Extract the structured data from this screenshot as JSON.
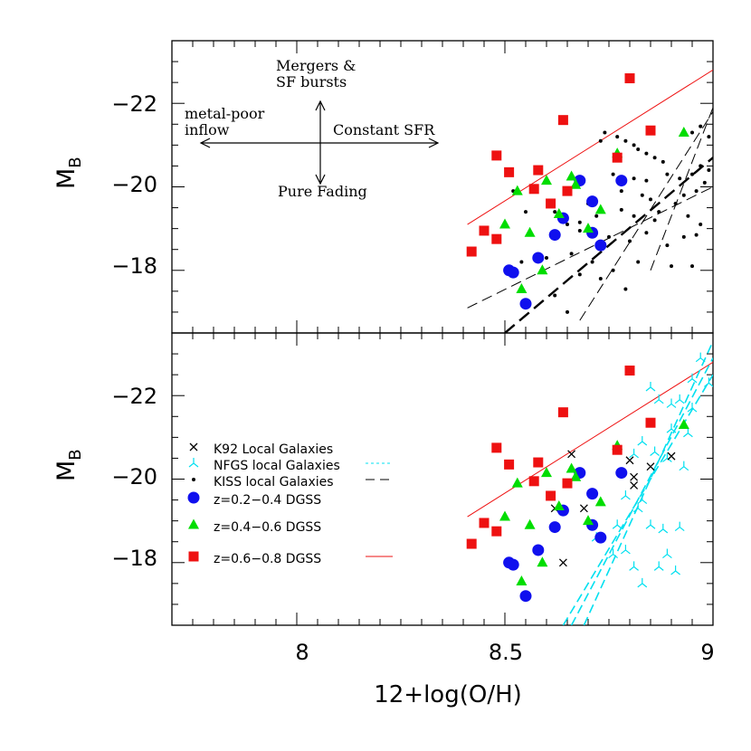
{
  "chart_data": {
    "type": "scatter",
    "xlabel": "12+log(O/H)",
    "ylabel": "M",
    "ylabel_sub": "B",
    "xlim": [
      7.7,
      9.0
    ],
    "ylim": [
      -16.5,
      -23.5
    ],
    "x_ticks": [
      {
        "value": 8.0,
        "label": "8"
      },
      {
        "value": 8.5,
        "label": "8.5"
      },
      {
        "value": 9.0,
        "label": "9"
      }
    ],
    "y_ticks": [
      {
        "value": -18,
        "label": "−18"
      },
      {
        "value": -20,
        "label": "−20"
      },
      {
        "value": -22,
        "label": "−22"
      }
    ],
    "colors": {
      "blue": "#1010ee",
      "green": "#00dd00",
      "red": "#ee1111",
      "cyan": "#00e0f0",
      "black": "#000000"
    },
    "top_panel": {
      "annotations": {
        "mergers": [
          "Mergers &",
          "SF bursts"
        ],
        "metal_poor": [
          "metal-poor",
          "inflow"
        ],
        "constant_sfr": "Constant SFR",
        "pure_fading": "Pure Fading"
      },
      "arrow_center": {
        "x": 7.74,
        "y": -21.0
      },
      "kiss_points": [
        [
          8.73,
          -21.1
        ],
        [
          8.74,
          -21.3
        ],
        [
          8.77,
          -21.2
        ],
        [
          8.79,
          -21.1
        ],
        [
          8.81,
          -21.0
        ],
        [
          8.82,
          -20.9
        ],
        [
          8.84,
          -20.8
        ],
        [
          8.86,
          -20.7
        ],
        [
          8.88,
          -20.6
        ],
        [
          8.76,
          -20.3
        ],
        [
          8.81,
          -20.2
        ],
        [
          8.89,
          -20.3
        ],
        [
          8.92,
          -20.2
        ],
        [
          8.95,
          -20.3
        ],
        [
          8.97,
          -20.5
        ],
        [
          8.99,
          -20.4
        ],
        [
          8.78,
          -19.9
        ],
        [
          8.83,
          -19.8
        ],
        [
          8.85,
          -19.7
        ],
        [
          8.93,
          -19.8
        ],
        [
          8.96,
          -19.9
        ],
        [
          8.98,
          -20.1
        ],
        [
          8.95,
          -21.3
        ],
        [
          8.97,
          -21.45
        ],
        [
          8.99,
          -21.2
        ],
        [
          8.7,
          -19.6
        ],
        [
          8.72,
          -19.3
        ],
        [
          8.78,
          -19.45
        ],
        [
          8.81,
          -19.3
        ],
        [
          8.87,
          -19.4
        ],
        [
          8.91,
          -19.6
        ],
        [
          8.94,
          -19.3
        ],
        [
          8.97,
          -19.1
        ],
        [
          8.62,
          -19.4
        ],
        [
          8.65,
          -19.1
        ],
        [
          8.68,
          -18.95
        ],
        [
          8.75,
          -18.8
        ],
        [
          8.8,
          -18.7
        ],
        [
          8.84,
          -18.9
        ],
        [
          8.89,
          -18.6
        ],
        [
          8.93,
          -18.8
        ],
        [
          8.96,
          -18.85
        ],
        [
          8.6,
          -18.3
        ],
        [
          8.66,
          -18.4
        ],
        [
          8.71,
          -18.2
        ],
        [
          8.76,
          -18.0
        ],
        [
          8.82,
          -18.2
        ],
        [
          8.9,
          -18.1
        ],
        [
          8.95,
          -18.1
        ],
        [
          8.54,
          -18.2
        ],
        [
          8.68,
          -17.9
        ],
        [
          8.73,
          -17.8
        ],
        [
          8.79,
          -17.55
        ],
        [
          8.62,
          -17.4
        ],
        [
          8.65,
          -17.0
        ],
        [
          8.52,
          -19.9
        ],
        [
          8.55,
          -19.4
        ],
        [
          8.68,
          -19.15
        ],
        [
          8.86,
          -19.2
        ],
        [
          8.84,
          -20.15
        ]
      ]
    },
    "bottom_panel": {
      "legend": [
        {
          "marker": "cross",
          "color": "#000000",
          "label": "K92 Local Galaxies",
          "line": null
        },
        {
          "marker": "tri3",
          "color": "#00e0f0",
          "label": "NFGS local Galaxies",
          "line": "dotted"
        },
        {
          "marker": "dot",
          "color": "#000000",
          "label": "KISS local Galaxies",
          "line": "dashed"
        },
        {
          "marker": "circle",
          "color": "#1010ee",
          "label": "z=0.2−0.4  DGSS",
          "line": null
        },
        {
          "marker": "triangle",
          "color": "#00dd00",
          "label": "z=0.4−0.6  DGSS",
          "line": null
        },
        {
          "marker": "square",
          "color": "#ee1111",
          "label": "z=0.6−0.8  DGSS",
          "line": "solid"
        }
      ],
      "k92_points": [
        [
          8.66,
          -20.6
        ],
        [
          8.8,
          -20.45
        ],
        [
          8.81,
          -20.05
        ],
        [
          8.81,
          -19.85
        ],
        [
          8.85,
          -20.3
        ],
        [
          8.9,
          -20.55
        ],
        [
          8.62,
          -19.3
        ],
        [
          8.69,
          -19.3
        ],
        [
          8.64,
          -18.0
        ]
      ],
      "nfgs_points": [
        [
          8.85,
          -22.2
        ],
        [
          8.87,
          -21.9
        ],
        [
          8.9,
          -21.8
        ],
        [
          8.92,
          -21.9
        ],
        [
          8.95,
          -21.7
        ],
        [
          8.99,
          -22.3
        ],
        [
          8.95,
          -22.4
        ],
        [
          8.97,
          -22.9
        ],
        [
          8.9,
          -21.2
        ],
        [
          8.94,
          -21.1
        ],
        [
          8.83,
          -20.9
        ],
        [
          8.86,
          -20.65
        ],
        [
          8.89,
          -20.5
        ],
        [
          8.93,
          -20.3
        ],
        [
          8.81,
          -20.6
        ],
        [
          8.79,
          -19.6
        ],
        [
          8.83,
          -19.5
        ],
        [
          8.82,
          -19.3
        ],
        [
          8.85,
          -18.9
        ],
        [
          8.88,
          -18.8
        ],
        [
          8.92,
          -18.85
        ],
        [
          8.77,
          -18.9
        ],
        [
          8.79,
          -18.3
        ],
        [
          8.81,
          -17.9
        ],
        [
          8.83,
          -17.5
        ],
        [
          8.87,
          -17.9
        ],
        [
          8.89,
          -18.2
        ],
        [
          8.91,
          -17.8
        ],
        [
          8.72,
          -18.6
        ],
        [
          8.76,
          -18.2
        ]
      ]
    },
    "series": [
      {
        "name": "z=0.2-0.4 DGSS",
        "marker": "circle",
        "color": "#1010ee",
        "points": [
          [
            8.51,
            -18.0
          ],
          [
            8.52,
            -17.95
          ],
          [
            8.55,
            -17.2
          ],
          [
            8.58,
            -18.3
          ],
          [
            8.62,
            -18.85
          ],
          [
            8.64,
            -19.25
          ],
          [
            8.68,
            -20.15
          ],
          [
            8.71,
            -19.65
          ],
          [
            8.71,
            -18.9
          ],
          [
            8.73,
            -18.6
          ],
          [
            8.78,
            -20.15
          ]
        ]
      },
      {
        "name": "z=0.4-0.6 DGSS",
        "marker": "triangle",
        "color": "#00dd00",
        "points": [
          [
            8.5,
            -19.1
          ],
          [
            8.53,
            -19.9
          ],
          [
            8.54,
            -17.55
          ],
          [
            8.56,
            -18.9
          ],
          [
            8.59,
            -18.0
          ],
          [
            8.6,
            -20.15
          ],
          [
            8.63,
            -19.35
          ],
          [
            8.66,
            -20.25
          ],
          [
            8.67,
            -20.05
          ],
          [
            8.7,
            -19.0
          ],
          [
            8.73,
            -19.45
          ],
          [
            8.77,
            -20.8
          ],
          [
            8.93,
            -21.3
          ]
        ]
      },
      {
        "name": "z=0.6-0.8 DGSS",
        "marker": "square",
        "color": "#ee1111",
        "points": [
          [
            8.42,
            -18.45
          ],
          [
            8.45,
            -18.95
          ],
          [
            8.48,
            -20.75
          ],
          [
            8.48,
            -18.75
          ],
          [
            8.51,
            -20.35
          ],
          [
            8.57,
            -19.95
          ],
          [
            8.58,
            -20.4
          ],
          [
            8.61,
            -19.6
          ],
          [
            8.64,
            -21.6
          ],
          [
            8.65,
            -19.9
          ],
          [
            8.77,
            -20.7
          ],
          [
            8.8,
            -22.6
          ],
          [
            8.85,
            -21.35
          ]
        ]
      }
    ],
    "fit_lines": {
      "dgss_red": {
        "color": "#ee1111",
        "style": "solid",
        "x": [
          8.41,
          9.0
        ],
        "y": [
          -19.1,
          -22.8
        ]
      },
      "kiss_thick": {
        "color": "#000000",
        "style": "dashed-thick",
        "x": [
          8.5,
          9.0
        ],
        "y": [
          -16.5,
          -20.7
        ]
      },
      "kiss_thin_a": {
        "color": "#000000",
        "style": "dashed",
        "x": [
          8.41,
          9.0
        ],
        "y": [
          -17.1,
          -20.0
        ]
      },
      "kiss_thin_b": {
        "color": "#000000",
        "style": "dashed",
        "x": [
          8.68,
          9.0
        ],
        "y": [
          -16.8,
          -21.8
        ]
      },
      "kiss_thin_c": {
        "color": "#000000",
        "style": "dashed",
        "x": [
          8.85,
          9.0
        ],
        "y": [
          -18.0,
          -21.9
        ]
      },
      "nfgs_1": {
        "color": "#00e0f0",
        "style": "dashed",
        "x": [
          8.64,
          9.0
        ],
        "y": [
          -16.5,
          -22.5
        ]
      },
      "nfgs_2": {
        "color": "#00e0f0",
        "style": "dashed",
        "x": [
          8.66,
          9.0
        ],
        "y": [
          -16.5,
          -22.9
        ]
      },
      "nfgs_3": {
        "color": "#00e0f0",
        "style": "dashed",
        "x": [
          8.69,
          9.0
        ],
        "y": [
          -16.5,
          -23.3
        ]
      }
    }
  }
}
